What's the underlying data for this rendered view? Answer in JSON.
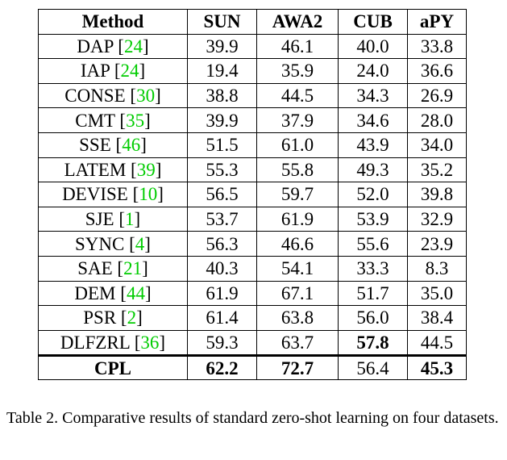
{
  "table": {
    "headers": [
      "Method",
      "SUN",
      "AWA2",
      "CUB",
      "aPY"
    ],
    "rows": [
      {
        "method": "DAP",
        "cite": "24",
        "values": [
          "39.9",
          "46.1",
          "40.0",
          "33.8"
        ],
        "bold": [
          false,
          false,
          false,
          false
        ]
      },
      {
        "method": "IAP",
        "cite": "24",
        "values": [
          "19.4",
          "35.9",
          "24.0",
          "36.6"
        ],
        "bold": [
          false,
          false,
          false,
          false
        ]
      },
      {
        "method": "CONSE",
        "cite": "30",
        "values": [
          "38.8",
          "44.5",
          "34.3",
          "26.9"
        ],
        "bold": [
          false,
          false,
          false,
          false
        ]
      },
      {
        "method": "CMT",
        "cite": "35",
        "values": [
          "39.9",
          "37.9",
          "34.6",
          "28.0"
        ],
        "bold": [
          false,
          false,
          false,
          false
        ]
      },
      {
        "method": "SSE",
        "cite": "46",
        "values": [
          "51.5",
          "61.0",
          "43.9",
          "34.0"
        ],
        "bold": [
          false,
          false,
          false,
          false
        ]
      },
      {
        "method": "LATEM",
        "cite": "39",
        "values": [
          "55.3",
          "55.8",
          "49.3",
          "35.2"
        ],
        "bold": [
          false,
          false,
          false,
          false
        ]
      },
      {
        "method": "DEVISE",
        "cite": "10",
        "values": [
          "56.5",
          "59.7",
          "52.0",
          "39.8"
        ],
        "bold": [
          false,
          false,
          false,
          false
        ]
      },
      {
        "method": "SJE",
        "cite": "1",
        "values": [
          "53.7",
          "61.9",
          "53.9",
          "32.9"
        ],
        "bold": [
          false,
          false,
          false,
          false
        ]
      },
      {
        "method": "SYNC",
        "cite": "4",
        "values": [
          "56.3",
          "46.6",
          "55.6",
          "23.9"
        ],
        "bold": [
          false,
          false,
          false,
          false
        ]
      },
      {
        "method": "SAE",
        "cite": "21",
        "values": [
          "40.3",
          "54.1",
          "33.3",
          "8.3"
        ],
        "bold": [
          false,
          false,
          false,
          false
        ]
      },
      {
        "method": "DEM",
        "cite": "44",
        "values": [
          "61.9",
          "67.1",
          "51.7",
          "35.0"
        ],
        "bold": [
          false,
          false,
          false,
          false
        ]
      },
      {
        "method": "PSR",
        "cite": "2",
        "values": [
          "61.4",
          "63.8",
          "56.0",
          "38.4"
        ],
        "bold": [
          false,
          false,
          false,
          false
        ]
      },
      {
        "method": "DLFZRL",
        "cite": "36",
        "values": [
          "59.3",
          "63.7",
          "57.8",
          "44.5"
        ],
        "bold": [
          false,
          false,
          true,
          false
        ]
      }
    ],
    "final_row": {
      "method": "CPL",
      "values": [
        "62.2",
        "72.7",
        "56.4",
        "45.3"
      ],
      "bold": [
        true,
        true,
        false,
        true
      ]
    }
  },
  "caption": "Table 2. Comparative results of standard zero-shot learning on four datasets.",
  "colors": {
    "citation": "#00cc00",
    "text": "#000000"
  }
}
